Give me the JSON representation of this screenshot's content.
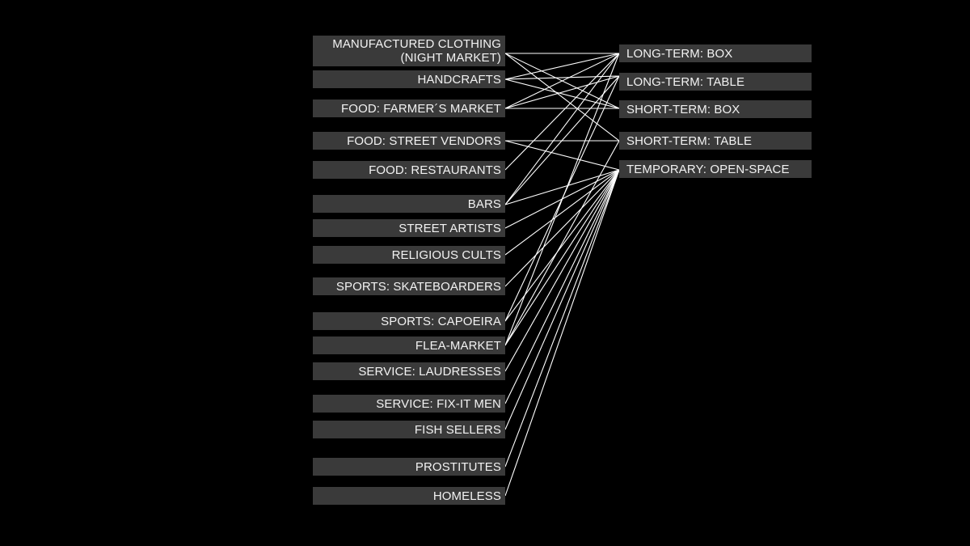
{
  "colors": {
    "background": "#000000",
    "box_fill": "#3a3a3a",
    "text": "#f2f2f2",
    "link": "#ffffff"
  },
  "activities": [
    {
      "id": "clothing",
      "label": "MANUFACTURED CLOTHING\n(NIGHT MARKET)"
    },
    {
      "id": "handcrafts",
      "label": "HANDCRAFTS"
    },
    {
      "id": "farmers",
      "label": "FOOD: FARMER´S MARKET"
    },
    {
      "id": "street_vendors",
      "label": "FOOD: STREET VENDORS"
    },
    {
      "id": "restaurants",
      "label": "FOOD: RESTAURANTS"
    },
    {
      "id": "bars",
      "label": "BARS"
    },
    {
      "id": "street_artists",
      "label": "STREET ARTISTS"
    },
    {
      "id": "religious",
      "label": "RELIGIOUS CULTS"
    },
    {
      "id": "skateboarders",
      "label": "SPORTS: SKATEBOARDERS"
    },
    {
      "id": "capoeira",
      "label": "SPORTS: CAPOEIRA"
    },
    {
      "id": "flea",
      "label": "FLEA-MARKET"
    },
    {
      "id": "laudresses",
      "label": "SERVICE: LAUDRESSES"
    },
    {
      "id": "fixit",
      "label": "SERVICE: FIX-IT MEN"
    },
    {
      "id": "fish",
      "label": "FISH SELLERS"
    },
    {
      "id": "prostitutes",
      "label": "PROSTITUTES"
    },
    {
      "id": "homeless",
      "label": "HOMELESS"
    }
  ],
  "occupation_types": [
    {
      "id": "lt_box",
      "label": "LONG-TERM: BOX"
    },
    {
      "id": "lt_table",
      "label": "LONG-TERM: TABLE"
    },
    {
      "id": "st_box",
      "label": "SHORT-TERM: BOX"
    },
    {
      "id": "st_table",
      "label": "SHORT-TERM: TABLE"
    },
    {
      "id": "temp_open",
      "label": "TEMPORARY: OPEN-SPACE"
    }
  ],
  "links": [
    {
      "from": "clothing",
      "to": "lt_box"
    },
    {
      "from": "clothing",
      "to": "st_box"
    },
    {
      "from": "clothing",
      "to": "st_table"
    },
    {
      "from": "handcrafts",
      "to": "lt_box"
    },
    {
      "from": "handcrafts",
      "to": "lt_table"
    },
    {
      "from": "handcrafts",
      "to": "st_box"
    },
    {
      "from": "farmers",
      "to": "lt_box"
    },
    {
      "from": "farmers",
      "to": "lt_table"
    },
    {
      "from": "farmers",
      "to": "st_box"
    },
    {
      "from": "street_vendors",
      "to": "st_table"
    },
    {
      "from": "street_vendors",
      "to": "temp_open"
    },
    {
      "from": "restaurants",
      "to": "lt_box"
    },
    {
      "from": "bars",
      "to": "lt_box"
    },
    {
      "from": "bars",
      "to": "lt_table"
    },
    {
      "from": "bars",
      "to": "temp_open"
    },
    {
      "from": "street_artists",
      "to": "temp_open"
    },
    {
      "from": "religious",
      "to": "temp_open"
    },
    {
      "from": "skateboarders",
      "to": "temp_open"
    },
    {
      "from": "capoeira",
      "to": "lt_table"
    },
    {
      "from": "capoeira",
      "to": "temp_open"
    },
    {
      "from": "flea",
      "to": "lt_box"
    },
    {
      "from": "flea",
      "to": "st_table"
    },
    {
      "from": "flea",
      "to": "temp_open"
    },
    {
      "from": "laudresses",
      "to": "temp_open"
    },
    {
      "from": "fixit",
      "to": "temp_open"
    },
    {
      "from": "fish",
      "to": "temp_open"
    },
    {
      "from": "prostitutes",
      "to": "temp_open"
    },
    {
      "from": "homeless",
      "to": "temp_open"
    }
  ]
}
